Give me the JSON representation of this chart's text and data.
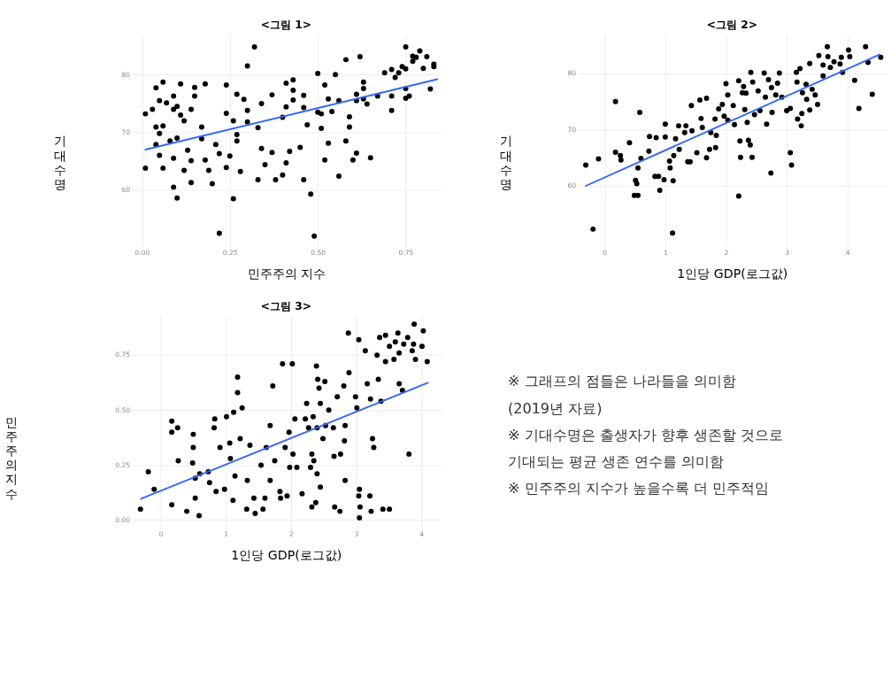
{
  "chart_data": [
    {
      "type": "scatter",
      "title": "<그림 1>",
      "xlabel": "민주주의 지수",
      "ylabel": "기대수명",
      "xlim": [
        -0.03,
        0.85
      ],
      "ylim": [
        50,
        87
      ],
      "xticks": [
        {
          "value": 0,
          "label": "0.00"
        },
        0.25,
        {
          "value": 0.5,
          "label": "0.50"
        },
        0.75
      ],
      "yticks": [
        60,
        70,
        80
      ],
      "grid": true,
      "series": [
        {
          "type": "scatter",
          "marker": "circle",
          "color": "#000000",
          "x": [
            0.01,
            0.01,
            0.03,
            0.04,
            0.04,
            0.04,
            0.05,
            0.05,
            0.05,
            0.06,
            0.06,
            0.06,
            0.07,
            0.08,
            0.09,
            0.09,
            0.09,
            0.09,
            0.1,
            0.1,
            0.1,
            0.11,
            0.11,
            0.12,
            0.12,
            0.13,
            0.14,
            0.14,
            0.14,
            0.15,
            0.15,
            0.17,
            0.17,
            0.18,
            0.18,
            0.19,
            0.2,
            0.21,
            0.22,
            0.22,
            0.24,
            0.24,
            0.24,
            0.25,
            0.26,
            0.26,
            0.27,
            0.27,
            0.28,
            0.27,
            0.29,
            0.3,
            0.3,
            0.3,
            0.32,
            0.33,
            0.33,
            0.34,
            0.34,
            0.35,
            0.37,
            0.37,
            0.38,
            0.4,
            0.4,
            0.41,
            0.41,
            0.41,
            0.42,
            0.43,
            0.43,
            0.43,
            0.45,
            0.46,
            0.46,
            0.46,
            0.47,
            0.48,
            0.49,
            0.5,
            0.5,
            0.51,
            0.51,
            0.52,
            0.52,
            0.53,
            0.53,
            0.54,
            0.55,
            0.56,
            0.56,
            0.58,
            0.58,
            0.59,
            0.59,
            0.6,
            0.61,
            0.61,
            0.62,
            0.63,
            0.61,
            0.63,
            0.63,
            0.64,
            0.65,
            0.67,
            0.69,
            0.71,
            0.71,
            0.71,
            0.72,
            0.73,
            0.74,
            0.75,
            0.75,
            0.75,
            0.75,
            0.76,
            0.77,
            0.77,
            0.79,
            0.78,
            0.8,
            0.81,
            0.82,
            0.83,
            0.83
          ],
          "values": [
            63.8,
            73.2,
            74.0,
            70.9,
            67.9,
            77.7,
            75.5,
            69.8,
            66.0,
            63.8,
            78.7,
            71.1,
            75.1,
            68.5,
            76.3,
            74.0,
            65.5,
            60.5,
            58.6,
            69.0,
            74.5,
            73.0,
            78.4,
            72.0,
            63.4,
            66.9,
            74.0,
            61.3,
            65.1,
            77.8,
            76.3,
            68.9,
            70.9,
            78.4,
            65.2,
            63.4,
            61.1,
            67.9,
            66.3,
            52.5,
            73.3,
            78.2,
            63.9,
            65.9,
            58.5,
            72.0,
            69.6,
            68.5,
            63.2,
            76.6,
            75.7,
            71.8,
            73.8,
            81.5,
            84.8,
            70.8,
            61.8,
            75.0,
            67.2,
            64.4,
            76.5,
            66.5,
            61.8,
            62.6,
            72.6,
            78.5,
            64.7,
            74.4,
            66.7,
            79.1,
            77.3,
            75.6,
            67.4,
            76.4,
            61.8,
            74.3,
            71.3,
            59.3,
            52.0,
            80.2,
            73.5,
            70.7,
            73.2,
            78.2,
            65.2,
            75.8,
            68.1,
            73.6,
            80.0,
            75.5,
            62.4,
            68.5,
            82.6,
            70.9,
            72.7,
            65.2,
            76.6,
            66.4,
            83.1,
            78.7,
            75.5,
            77.6,
            75.8,
            74.9,
            65.6,
            76.3,
            80.3,
            76.3,
            73.8,
            80.9,
            79.5,
            80.3,
            81.4,
            81.0,
            77.6,
            84.8,
            75.9,
            76.3,
            82.3,
            83.2,
            84.1,
            83.0,
            81.1,
            83.1,
            77.5,
            81.8,
            81.4
          ]
        },
        {
          "type": "line",
          "color": "#3366ff",
          "x": [
            0.01,
            0.84
          ],
          "values": [
            67.0,
            79.2
          ]
        }
      ]
    },
    {
      "type": "scatter",
      "title": "<그림 2>",
      "xlabel": "1인당 GDP(로그값)",
      "ylabel": "기대수명",
      "xlim": [
        -0.45,
        4.65
      ],
      "ylim": [
        49,
        87
      ],
      "xticks": [
        0,
        1,
        2,
        3,
        4
      ],
      "yticks": [
        60,
        70,
        80
      ],
      "grid": true,
      "series": [
        {
          "type": "scatter",
          "marker": "circle",
          "color": "#000000",
          "x": [
            -0.31,
            -0.19,
            -0.1,
            0.18,
            0.18,
            0.26,
            0.27,
            0.41,
            0.58,
            0.6,
            0.55,
            0.51,
            0.53,
            0.49,
            0.55,
            0.74,
            0.73,
            0.83,
            0.85,
            0.89,
            0.91,
            1.0,
            1.0,
            0.98,
            1.07,
            1.08,
            1.13,
            1.12,
            1.14,
            1.17,
            1.22,
            1.23,
            1.32,
            1.34,
            1.37,
            1.41,
            1.43,
            1.44,
            1.52,
            1.57,
            1.59,
            1.61,
            1.68,
            1.68,
            1.75,
            1.73,
            1.82,
            1.83,
            1.84,
            1.88,
            1.94,
            1.97,
            2.0,
            2.03,
            2.03,
            2.12,
            2.14,
            2.21,
            2.23,
            2.24,
            2.21,
            2.27,
            2.29,
            2.33,
            2.31,
            2.35,
            2.37,
            2.4,
            2.43,
            2.41,
            2.44,
            2.47,
            2.53,
            2.56,
            2.63,
            2.65,
            2.67,
            2.7,
            2.74,
            2.76,
            2.75,
            2.82,
            2.88,
            2.85,
            2.92,
            3.0,
            3.06,
            3.06,
            3.08,
            3.16,
            3.17,
            3.18,
            3.22,
            3.24,
            3.25,
            3.26,
            3.32,
            3.33,
            3.38,
            3.38,
            3.42,
            3.47,
            3.51,
            3.6,
            3.53,
            3.6,
            3.67,
            3.68,
            3.72,
            3.78,
            3.88,
            3.92,
            3.9,
            4.02,
            4.04,
            4.12,
            4.19,
            4.3,
            4.34,
            4.41,
            4.55
          ],
          "values": [
            63.7,
            52.3,
            64.8,
            75.0,
            66.0,
            65.4,
            64.6,
            67.7,
            73.1,
            64.9,
            63.2,
            61.0,
            60.4,
            58.3,
            58.3,
            68.8,
            66.2,
            61.7,
            68.6,
            61.7,
            59.2,
            71.0,
            68.7,
            61.1,
            64.4,
            63.2,
            60.9,
            51.6,
            65.4,
            68.4,
            70.7,
            66.5,
            69.5,
            70.7,
            64.3,
            64.3,
            74.3,
            69.8,
            65.9,
            75.3,
            72.0,
            70.4,
            75.6,
            65.0,
            69.5,
            66.5,
            71.9,
            66.8,
            69.0,
            73.7,
            74.5,
            72.4,
            78.2,
            76.2,
            71.7,
            74.3,
            70.9,
            78.7,
            68.0,
            65.1,
            58.2,
            76.6,
            77.7,
            76.5,
            73.6,
            71.3,
            68.1,
            67.3,
            65.1,
            80.2,
            78.5,
            72.7,
            76.9,
            73.4,
            80.1,
            75.8,
            71.0,
            78.9,
            62.3,
            73.1,
            77.5,
            76.2,
            80.1,
            78.3,
            75.8,
            73.4,
            73.8,
            65.9,
            63.7,
            80.2,
            78.5,
            71.9,
            80.9,
            70.7,
            72.9,
            76.6,
            78.1,
            75.4,
            73.5,
            81.8,
            77.2,
            76.2,
            74.5,
            79.6,
            83.2,
            81.5,
            84.8,
            83.0,
            81.1,
            82.1,
            81.7,
            80.2,
            82.9,
            84.2,
            83.0,
            78.8,
            73.8,
            84.8,
            82.0,
            76.3,
            82.9
          ]
        },
        {
          "type": "line",
          "color": "#3366ff",
          "x": [
            -0.31,
            4.53
          ],
          "values": [
            60.0,
            83.4
          ]
        }
      ]
    },
    {
      "type": "scatter",
      "title": "<그림 3>",
      "xlabel": "1인당 GDP(로그값)",
      "ylabel": "민주주의 지수",
      "xlim": [
        -0.45,
        4.3
      ],
      "ylim": [
        -0.04,
        0.93
      ],
      "xticks": [
        0,
        1,
        2,
        3,
        4
      ],
      "yticks": [
        {
          "value": 0,
          "label": "0.00"
        },
        0.25,
        {
          "value": 0.5,
          "label": "0.50"
        },
        0.75
      ],
      "grid": true,
      "series": [
        {
          "type": "scatter",
          "marker": "circle",
          "color": "#000000",
          "x": [
            -0.31,
            -0.19,
            -0.1,
            0.17,
            0.17,
            0.26,
            0.27,
            0.17,
            0.4,
            0.49,
            0.5,
            0.5,
            0.53,
            0.53,
            0.59,
            0.6,
            0.73,
            0.75,
            0.82,
            0.83,
            0.85,
            0.91,
            0.98,
            1.01,
            1.06,
            1.07,
            1.11,
            1.12,
            1.14,
            1.18,
            1.18,
            1.22,
            1.25,
            1.32,
            1.33,
            1.37,
            1.43,
            1.45,
            1.54,
            1.57,
            1.6,
            1.62,
            1.68,
            1.68,
            1.72,
            1.75,
            1.83,
            1.84,
            1.87,
            1.91,
            1.94,
            1.97,
            1.98,
            2.02,
            2.03,
            2.06,
            2.09,
            2.17,
            2.22,
            2.24,
            2.27,
            2.3,
            2.32,
            2.32,
            2.34,
            2.35,
            2.38,
            2.39,
            2.4,
            2.4,
            2.41,
            2.43,
            2.45,
            2.45,
            2.49,
            2.53,
            2.52,
            2.58,
            2.65,
            2.67,
            2.66,
            2.71,
            2.75,
            2.76,
            2.81,
            2.82,
            2.83,
            2.83,
            2.88,
            2.89,
            2.99,
            3.01,
            3.04,
            3.05,
            3.04,
            3.06,
            3.05,
            3.14,
            3.17,
            3.21,
            3.22,
            3.23,
            3.25,
            3.27,
            3.32,
            3.34,
            3.38,
            3.36,
            3.41,
            3.45,
            3.45,
            3.51,
            3.51,
            3.58,
            3.6,
            3.64,
            3.66,
            3.66,
            3.71,
            3.73,
            3.81,
            3.79,
            3.86,
            3.88,
            3.89,
            3.91,
            4.01,
            4.03,
            4.09
          ],
          "values": [
            0.05,
            0.22,
            0.14,
            0.45,
            0.4,
            0.42,
            0.27,
            0.07,
            0.04,
            0.26,
            0.39,
            0.33,
            0.19,
            0.1,
            0.02,
            0.21,
            0.22,
            0.17,
            0.42,
            0.46,
            0.13,
            0.33,
            0.14,
            0.47,
            0.35,
            0.28,
            0.09,
            0.49,
            0.2,
            0.58,
            0.65,
            0.37,
            0.51,
            0.05,
            0.18,
            0.34,
            0.1,
            0.03,
            0.25,
            0.05,
            0.1,
            0.33,
            0.43,
            0.18,
            0.61,
            0.27,
            0.13,
            0.1,
            0.71,
            0.33,
            0.11,
            0.4,
            0.24,
            0.71,
            0.3,
            0.46,
            0.24,
            0.12,
            0.46,
            0.53,
            0.42,
            0.24,
            0.3,
            0.06,
            0.47,
            0.27,
            0.08,
            0.7,
            0.42,
            0.21,
            0.64,
            0.6,
            0.15,
            0.53,
            0.37,
            0.43,
            0.63,
            0.5,
            0.42,
            0.06,
            0.29,
            0.56,
            0.04,
            0.3,
            0.61,
            0.36,
            0.18,
            0.43,
            0.85,
            0.67,
            0.56,
            0.51,
            0.82,
            0.14,
            0.11,
            0.06,
            0.01,
            0.77,
            0.62,
            0.11,
            0.55,
            0.04,
            0.37,
            0.33,
            0.75,
            0.64,
            0.54,
            0.83,
            0.05,
            0.84,
            0.72,
            0.05,
            0.79,
            0.73,
            0.81,
            0.85,
            0.62,
            0.76,
            0.59,
            0.8,
            0.3,
            0.83,
            0.77,
            0.8,
            0.89,
            0.73,
            0.79,
            0.86,
            0.72
          ]
        },
        {
          "type": "line",
          "color": "#3366ff",
          "x": [
            -0.3,
            4.1
          ],
          "values": [
            0.097,
            0.624
          ]
        }
      ]
    },
    {
      "type": "other",
      "annotations": [
        "※ 그래프의 점들은 나라들을 의미함",
        "(2019년 자료)",
        "※ 기대수명은 출생자가 향후 생존할 것으로",
        "기대되는 평균 생존 연수를 의미함",
        "※ 민주주의 지수가 높을수록 더 민주적임"
      ]
    }
  ]
}
